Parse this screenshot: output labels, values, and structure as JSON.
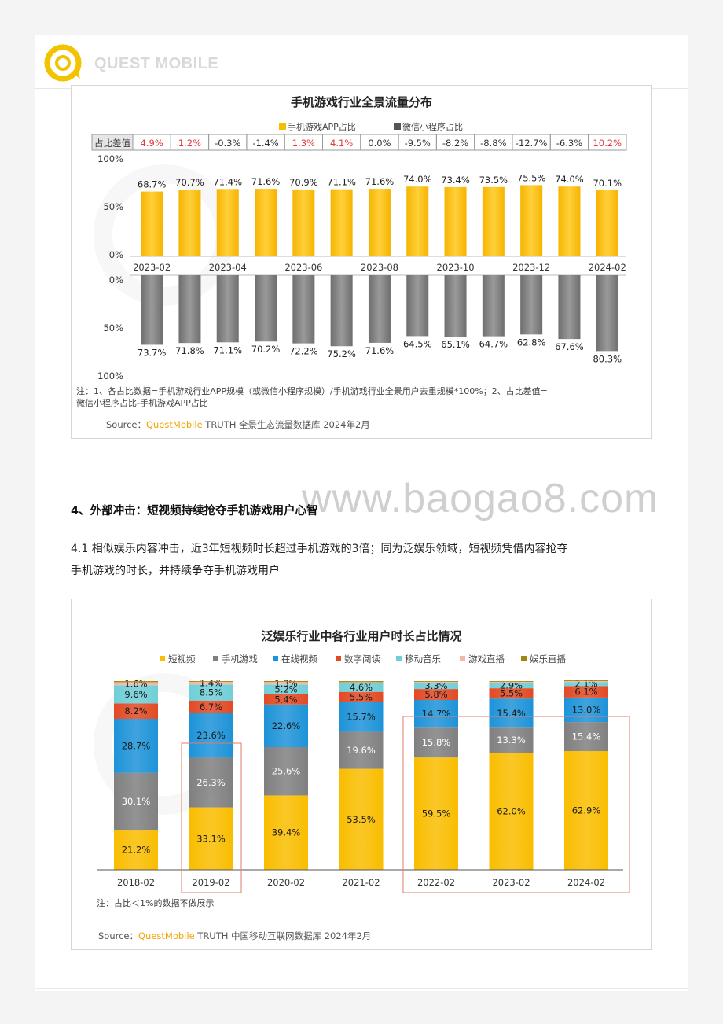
{
  "header": {
    "logo_text": "QUEST MOBILE"
  },
  "watermark_site": "www.baogao8.com",
  "section": {
    "title": "4、外部冲击：短视频持续抢夺手机游戏用户心智",
    "paragraph_line1": "4.1 相似娱乐内容冲击，近3年短视频时长超过手机游戏的3倍；同为泛娱乐领域，短视频凭借内容抢夺",
    "paragraph_line2": "手机游戏的时长，并持续争夺手机游戏用户"
  },
  "colors": {
    "yellow": "#f9bd00",
    "gray": "#808080",
    "blue": "#1d93d8",
    "red": "#e24a24",
    "cyan": "#6fcfd8",
    "pink": "#f2b8a7",
    "gold": "#a4860f",
    "highlight": "#e37d6e",
    "red_text": "#e03b3b"
  },
  "chart_data": [
    {
      "type": "bar",
      "title": "手机游戏行业全景流量分布",
      "legend": [
        "手机游戏APP占比",
        "微信小程序占比"
      ],
      "diff_label": "占比差值",
      "categories": [
        "2023-02",
        "2023-03",
        "2023-04",
        "2023-05",
        "2023-06",
        "2023-07",
        "2023-08",
        "2023-09",
        "2023-10",
        "2023-11",
        "2023-12",
        "2024-01",
        "2024-02"
      ],
      "x_tick_labels": [
        "2023-02",
        "2023-04",
        "2023-06",
        "2023-08",
        "2023-10",
        "2023-12",
        "2024-02"
      ],
      "y_ticks_top": [
        "100%",
        "50%",
        "0%"
      ],
      "y_ticks_bottom": [
        "0%",
        "50%",
        "100%"
      ],
      "ylim": [
        0,
        100
      ],
      "series": [
        {
          "name": "手机游戏APP占比",
          "values": [
            68.7,
            70.7,
            71.4,
            71.6,
            70.9,
            71.1,
            71.6,
            74.0,
            73.4,
            73.5,
            75.5,
            74.0,
            70.1
          ],
          "labels": [
            "68.7%",
            "70.7%",
            "71.4%",
            "71.6%",
            "70.9%",
            "71.1%",
            "71.6%",
            "74.0%",
            "73.4%",
            "73.5%",
            "75.5%",
            "74.0%",
            "70.1%"
          ]
        },
        {
          "name": "微信小程序占比",
          "values": [
            73.7,
            71.8,
            71.1,
            70.2,
            72.2,
            75.2,
            71.6,
            64.5,
            65.1,
            64.7,
            62.8,
            67.6,
            80.3
          ],
          "labels": [
            "73.7%",
            "71.8%",
            "71.1%",
            "70.2%",
            "72.2%",
            "75.2%",
            "71.6%",
            "64.5%",
            "65.1%",
            "64.7%",
            "62.8%",
            "67.6%",
            "80.3%"
          ]
        }
      ],
      "diff_values": [
        4.9,
        1.2,
        -0.3,
        -1.4,
        1.3,
        4.1,
        0.0,
        -9.5,
        -8.2,
        -8.8,
        -12.7,
        -6.3,
        10.2
      ],
      "diff_labels": [
        "4.9%",
        "1.2%",
        "-0.3%",
        "-1.4%",
        "1.3%",
        "4.1%",
        "0.0%",
        "-9.5%",
        "-8.2%",
        "-8.8%",
        "-12.7%",
        "-6.3%",
        "10.2%"
      ],
      "note": "注：1、各占比数据=手机游戏行业APP规模（或微信小程序规模）/手机游戏行业全景用户去重规模*100%；2、占比差值=",
      "note_line2": "微信小程序占比-手机游戏APP占比",
      "source_prefix": "Source：",
      "source_brand": "QuestMobile",
      "source_rest": " TRUTH 全景生态流量数据库 2024年2月"
    },
    {
      "type": "bar",
      "stacked": true,
      "title": "泛娱乐行业中各行业用户时长占比情况",
      "categories": [
        "2018-02",
        "2019-02",
        "2020-02",
        "2021-02",
        "2022-02",
        "2023-02",
        "2024-02"
      ],
      "series": [
        {
          "name": "短视频",
          "values": [
            21.2,
            33.1,
            39.4,
            53.5,
            59.5,
            62.0,
            62.9
          ]
        },
        {
          "name": "手机游戏",
          "values": [
            30.1,
            26.3,
            25.6,
            19.6,
            15.8,
            13.3,
            15.4
          ]
        },
        {
          "name": "在线视频",
          "values": [
            28.7,
            23.6,
            22.6,
            15.7,
            14.7,
            15.4,
            13.0
          ]
        },
        {
          "name": "数字阅读",
          "values": [
            8.2,
            6.7,
            5.4,
            5.5,
            5.8,
            5.5,
            6.1
          ]
        },
        {
          "name": "移动音乐",
          "values": [
            9.6,
            8.5,
            5.2,
            4.6,
            3.3,
            2.9,
            2.1
          ]
        },
        {
          "name": "游戏直播",
          "values": [
            1.6,
            1.4,
            1.3,
            0.5,
            0.5,
            0.5,
            0.5
          ]
        },
        {
          "name": "娱乐直播",
          "values": [
            0.6,
            0.4,
            0.5,
            0.6,
            0.4,
            0.4,
            0.4
          ]
        }
      ],
      "value_labels": [
        [
          "21.2%",
          "30.1%",
          "28.7%",
          "8.2%",
          "9.6%",
          "1.6%"
        ],
        [
          "33.1%",
          "26.3%",
          "23.6%",
          "6.7%",
          "8.5%",
          "1.4%"
        ],
        [
          "39.4%",
          "25.6%",
          "22.6%",
          "5.4%",
          "5.2%",
          "1.3%"
        ],
        [
          "53.5%",
          "19.6%",
          "15.7%",
          "5.5%",
          "4.6%"
        ],
        [
          "59.5%",
          "15.8%",
          "14.7%",
          "5.8%",
          "3.3%"
        ],
        [
          "62.0%",
          "13.3%",
          "15.4%",
          "5.5%",
          "2.9%"
        ],
        [
          "62.9%",
          "15.4%",
          "13.0%",
          "6.1%",
          "2.1%"
        ]
      ],
      "highlighted": [
        "2019-02",
        "2022-02 to 2024-02"
      ],
      "note": "注：占比＜1%的数据不做展示",
      "source_prefix": "Source：",
      "source_brand": "QuestMobile",
      "source_rest": " TRUTH 中国移动互联网数据库 2024年2月"
    }
  ]
}
